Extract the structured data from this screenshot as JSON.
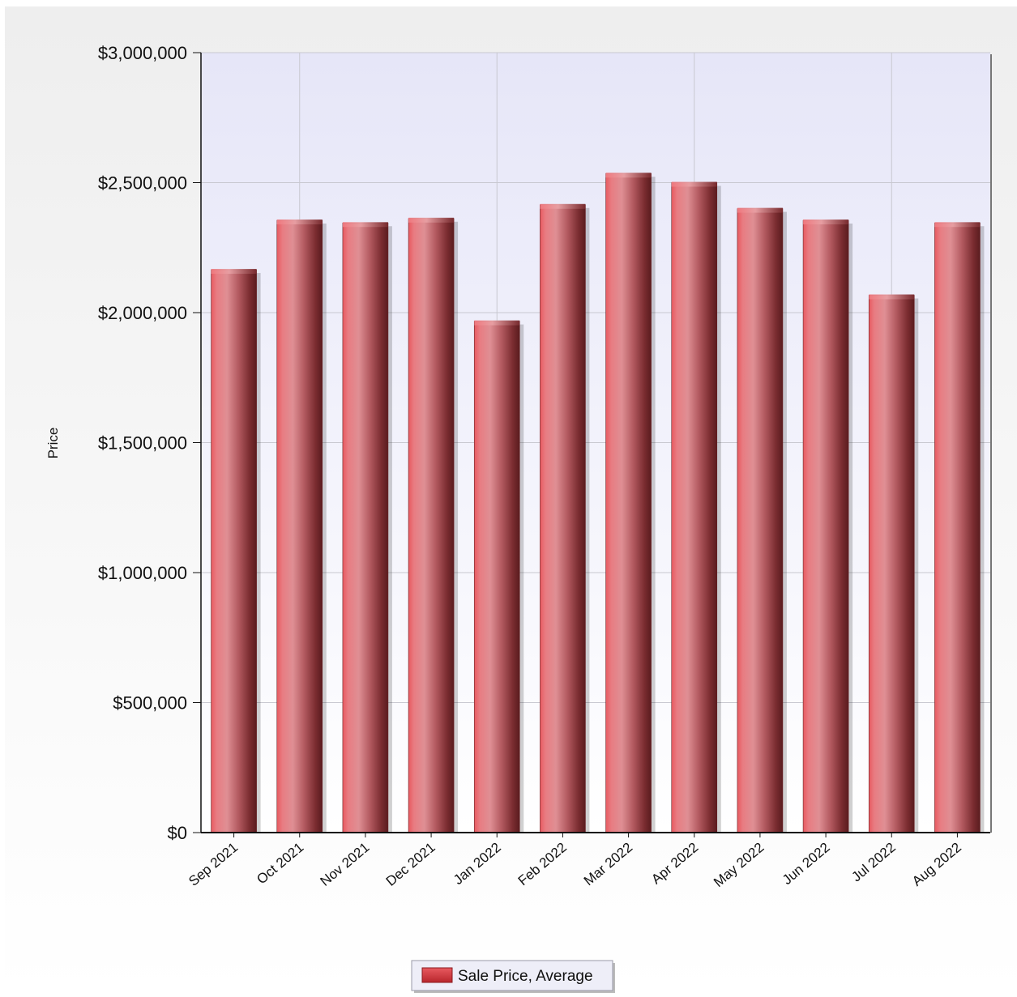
{
  "chart_data": {
    "type": "bar",
    "categories": [
      "Sep 2021",
      "Oct 2021",
      "Nov 2021",
      "Dec 2021",
      "Jan 2022",
      "Feb 2022",
      "Mar 2022",
      "Apr 2022",
      "May 2022",
      "Jun 2022",
      "Jul 2022",
      "Aug 2022"
    ],
    "series": [
      {
        "name": "Sale Price, Average",
        "values": [
          2165000,
          2355000,
          2345000,
          2362000,
          1967000,
          2415000,
          2535000,
          2500000,
          2400000,
          2355000,
          2067000,
          2345000
        ],
        "color": "#d9464b"
      }
    ],
    "title": "",
    "xlabel": "",
    "ylabel": "Price",
    "ylim": [
      0,
      3000000
    ],
    "yticks": [
      0,
      500000,
      1000000,
      1500000,
      2000000,
      2500000,
      3000000
    ],
    "ytick_labels": [
      "$0",
      "$500,000",
      "$1,000,000",
      "$1,500,000",
      "$2,000,000",
      "$2,500,000",
      "$3,000,000"
    ],
    "grid": true,
    "legend_position": "bottom-center",
    "colors": {
      "plot_bg_top": "#e6e6f8",
      "plot_bg_bottom": "#ffffff",
      "outer_bg_top": "#eeeeee",
      "outer_bg_bottom": "#ffffff",
      "grid": "#c8c8d0"
    }
  }
}
